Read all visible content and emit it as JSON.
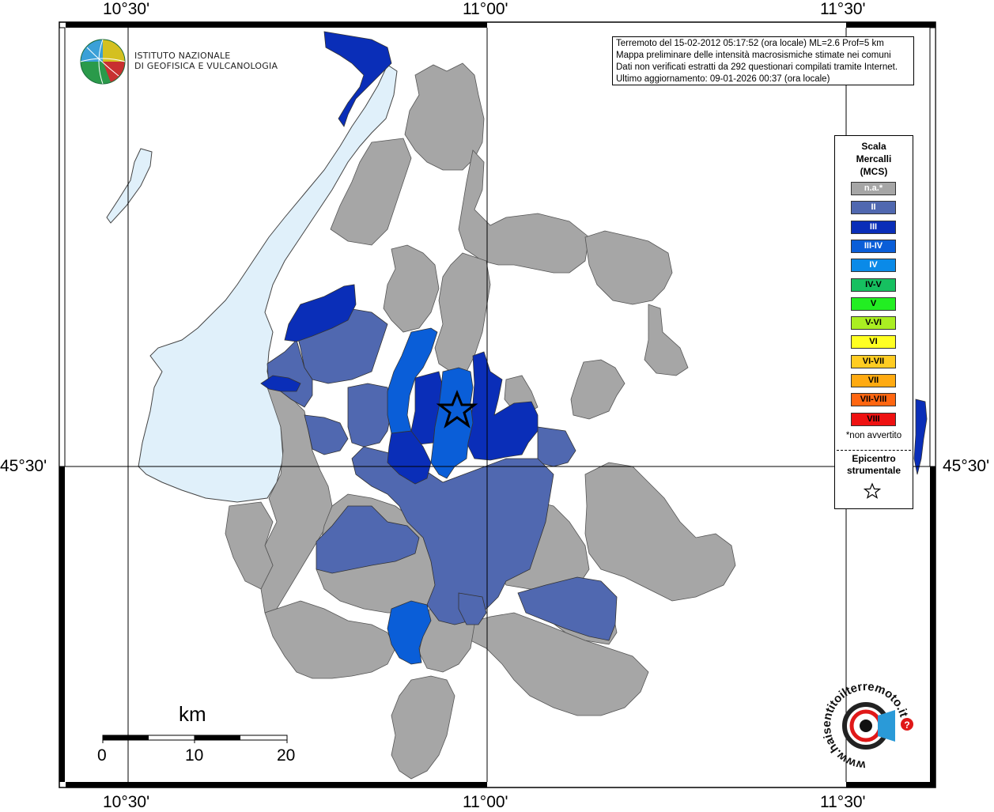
{
  "coordinates": {
    "lon_labels": [
      "10°30'",
      "11°00'",
      "11°30'"
    ],
    "lat_labels": [
      "45°30'"
    ]
  },
  "info_box": {
    "line1": "Terremoto del 15-02-2012 05:17:52 (ora locale) ML=2.6 Prof=5 km",
    "line2": "Mappa preliminare delle intensità macrosismiche stimate nei comuni",
    "line3": "Dati non verificati estratti da 292 questionari compilati tramite Internet.",
    "line4": "Ultimo aggiornamento: 09-01-2026 00:37 (ora locale)"
  },
  "logo": {
    "line1": "ISTITUTO NAZIONALE",
    "line2": "DI GEOFISICA E VULCANOLOGIA"
  },
  "legend": {
    "title": "Scala\nMercalli\n(MCS)",
    "items": [
      {
        "label": "n.a.*",
        "color": "#a6a6a6",
        "text_color": "#ffffff"
      },
      {
        "label": "II",
        "color": "#5068b0",
        "text_color": "#ffffff"
      },
      {
        "label": "III",
        "color": "#0a2eb8",
        "text_color": "#ffffff"
      },
      {
        "label": "III-IV",
        "color": "#0a5ed8",
        "text_color": "#ffffff"
      },
      {
        "label": "IV",
        "color": "#0a8ae8",
        "text_color": "#ffffff"
      },
      {
        "label": "IV-V",
        "color": "#16c060",
        "text_color": "#000000"
      },
      {
        "label": "V",
        "color": "#22ee22",
        "text_color": "#000000"
      },
      {
        "label": "V-VI",
        "color": "#aaee22",
        "text_color": "#000000"
      },
      {
        "label": "VI",
        "color": "#ffff22",
        "text_color": "#000000"
      },
      {
        "label": "VI-VII",
        "color": "#ffcc22",
        "text_color": "#000000"
      },
      {
        "label": "VII",
        "color": "#ffaa11",
        "text_color": "#000000"
      },
      {
        "label": "VII-VIII",
        "color": "#ff6611",
        "text_color": "#000000"
      },
      {
        "label": "VIII",
        "color": "#ee1111",
        "text_color": "#000000"
      }
    ],
    "note": "*non avvertito",
    "epicenter_label": "Epicentro\nstrumentale"
  },
  "scale_bar": {
    "unit": "km",
    "ticks": [
      "0",
      "10",
      "20"
    ]
  },
  "hsit_logo": {
    "text": "www.haisentitoilterremoto.it",
    "badge": "?"
  },
  "colors": {
    "lake": "#e0f0fa",
    "na": "#a6a6a6",
    "ii": "#5068b0",
    "iii": "#0a2eb8",
    "iii_iv": "#0a5ed8"
  }
}
